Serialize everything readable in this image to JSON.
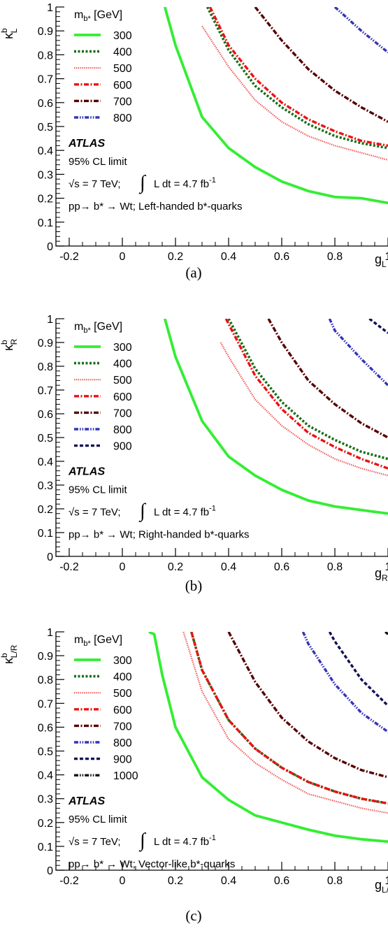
{
  "chart_data": [
    {
      "type": "line",
      "panel_label": "(a)",
      "xlabel": "g",
      "xlabel_sub": "L",
      "ylabel": "κ",
      "ylabel_sup": "b",
      "ylabel_sub": "L",
      "xlim": [
        -0.25,
        1.0
      ],
      "ylim": [
        0,
        1
      ],
      "x_ticks": [
        "-0.2",
        "0",
        "0.2",
        "0.4",
        "0.6",
        "0.8",
        "1"
      ],
      "y_ticks": [
        "0",
        "0.1",
        "0.2",
        "0.3",
        "0.4",
        "0.5",
        "0.6",
        "0.7",
        "0.8",
        "0.9",
        "1"
      ],
      "legend_title_main": "m",
      "legend_title_sub": "b*",
      "legend_title_rest": " [GeV]",
      "atlas_label": "ATLAS",
      "cl_label": "95% CL limit",
      "energy_label": "√s = 7 TeV;",
      "lumi_label": "L dt = 4.7 fb",
      "lumi_sup": "-1",
      "process_label": "pp→ b* → Wt; Left-handed b*-quarks",
      "series": [
        {
          "name": "300",
          "color": "#33ee33",
          "dash": "solid",
          "x": [
            0.16,
            0.2,
            0.3,
            0.4,
            0.5,
            0.6,
            0.7,
            0.8,
            0.9,
            1.0
          ],
          "y": [
            1.0,
            0.84,
            0.54,
            0.41,
            0.33,
            0.27,
            0.23,
            0.205,
            0.2,
            0.18
          ]
        },
        {
          "name": "400",
          "color": "#1a6e1a",
          "dash": "dotted",
          "x": [
            0.32,
            0.4,
            0.5,
            0.6,
            0.7,
            0.8,
            0.9,
            1.0
          ],
          "y": [
            1.0,
            0.82,
            0.67,
            0.58,
            0.51,
            0.46,
            0.43,
            0.41
          ]
        },
        {
          "name": "500",
          "color": "#ee5555",
          "dash": "fine",
          "x": [
            0.3,
            0.4,
            0.5,
            0.6,
            0.7,
            0.8,
            0.9,
            1.0
          ],
          "y": [
            0.92,
            0.75,
            0.61,
            0.52,
            0.46,
            0.42,
            0.39,
            0.36
          ]
        },
        {
          "name": "600",
          "color": "#ee1111",
          "dash": "dashdot",
          "x": [
            0.33,
            0.4,
            0.5,
            0.6,
            0.7,
            0.8,
            0.9,
            1.0
          ],
          "y": [
            1.0,
            0.84,
            0.7,
            0.6,
            0.53,
            0.48,
            0.44,
            0.42
          ]
        },
        {
          "name": "700",
          "color": "#550000",
          "dash": "dashdot",
          "x": [
            0.5,
            0.6,
            0.7,
            0.8,
            0.9,
            1.0
          ],
          "y": [
            1.0,
            0.86,
            0.74,
            0.65,
            0.58,
            0.52
          ]
        },
        {
          "name": "800",
          "color": "#3333bb",
          "dash": "dashdotdot",
          "x": [
            0.8,
            0.9,
            1.0
          ],
          "y": [
            1.0,
            0.9,
            0.81
          ]
        }
      ]
    },
    {
      "type": "line",
      "panel_label": "(b)",
      "xlabel": "g",
      "xlabel_sub": "R",
      "ylabel": "κ",
      "ylabel_sup": "b",
      "ylabel_sub": "R",
      "xlim": [
        -0.25,
        1.0
      ],
      "ylim": [
        0,
        1
      ],
      "x_ticks": [
        "-0.2",
        "0",
        "0.2",
        "0.4",
        "0.6",
        "0.8",
        "1"
      ],
      "y_ticks": [
        "0",
        "0.1",
        "0.2",
        "0.3",
        "0.4",
        "0.5",
        "0.6",
        "0.7",
        "0.8",
        "0.9",
        "1"
      ],
      "legend_title_main": "m",
      "legend_title_sub": "b*",
      "legend_title_rest": " [GeV]",
      "atlas_label": "ATLAS",
      "cl_label": "95% CL limit",
      "energy_label": "√s = 7 TeV;",
      "lumi_label": "L dt = 4.7 fb",
      "lumi_sup": "-1",
      "process_label": "pp→ b* → Wt; Right-handed b*-quarks",
      "series": [
        {
          "name": "300",
          "color": "#33ee33",
          "dash": "solid",
          "x": [
            0.16,
            0.2,
            0.3,
            0.4,
            0.5,
            0.6,
            0.7,
            0.8,
            0.9,
            1.0
          ],
          "y": [
            1.0,
            0.84,
            0.57,
            0.42,
            0.34,
            0.28,
            0.235,
            0.21,
            0.195,
            0.18
          ]
        },
        {
          "name": "400",
          "color": "#1a6e1a",
          "dash": "dotted",
          "x": [
            0.4,
            0.5,
            0.6,
            0.7,
            0.8,
            0.9,
            1.0
          ],
          "y": [
            1.0,
            0.79,
            0.65,
            0.55,
            0.49,
            0.44,
            0.41
          ]
        },
        {
          "name": "500",
          "color": "#ee5555",
          "dash": "fine",
          "x": [
            0.37,
            0.4,
            0.5,
            0.6,
            0.7,
            0.8,
            0.9,
            1.0
          ],
          "y": [
            0.9,
            0.84,
            0.66,
            0.55,
            0.47,
            0.41,
            0.37,
            0.34
          ]
        },
        {
          "name": "600",
          "color": "#ee1111",
          "dash": "dashdot",
          "x": [
            0.39,
            0.5,
            0.6,
            0.7,
            0.8,
            0.9,
            1.0
          ],
          "y": [
            1.0,
            0.76,
            0.62,
            0.52,
            0.46,
            0.41,
            0.37
          ]
        },
        {
          "name": "700",
          "color": "#550000",
          "dash": "dashdot",
          "x": [
            0.55,
            0.6,
            0.7,
            0.8,
            0.9,
            1.0
          ],
          "y": [
            1.0,
            0.9,
            0.74,
            0.64,
            0.56,
            0.5
          ]
        },
        {
          "name": "800",
          "color": "#3333bb",
          "dash": "dashdotdot",
          "x": [
            0.78,
            0.8,
            0.9,
            1.0
          ],
          "y": [
            1.0,
            0.95,
            0.83,
            0.72
          ]
        },
        {
          "name": "900",
          "color": "#111155",
          "dash": "dashed",
          "x": [
            0.93,
            1.0
          ],
          "y": [
            1.0,
            0.94
          ]
        }
      ]
    },
    {
      "type": "line",
      "panel_label": "(c)",
      "xlabel": "g",
      "xlabel_sub": "L/R",
      "ylabel": "κ",
      "ylabel_sup": "b",
      "ylabel_sub": "L/R",
      "xlim": [
        -0.25,
        1.0
      ],
      "ylim": [
        0,
        1
      ],
      "x_ticks": [
        "-0.2",
        "0",
        "0.2",
        "0.4",
        "0.6",
        "0.8",
        "1"
      ],
      "y_ticks": [
        "0",
        "0.1",
        "0.2",
        "0.3",
        "0.4",
        "0.5",
        "0.6",
        "0.7",
        "0.8",
        "0.9",
        "1"
      ],
      "legend_title_main": "m",
      "legend_title_sub": "b*",
      "legend_title_rest": " [GeV]",
      "atlas_label": "ATLAS",
      "cl_label": "95% CL limit",
      "energy_label": "√s = 7 TeV;",
      "lumi_label": "L dt = 4.7 fb",
      "lumi_sup": "-1",
      "process_label": "pp→ b* → Wt; Vector-like b*-quarks",
      "series": [
        {
          "name": "300",
          "color": "#33ee33",
          "dash": "solid",
          "x": [
            0.1,
            0.12,
            0.15,
            0.2,
            0.3,
            0.4,
            0.5,
            0.6,
            0.7,
            0.8,
            0.9,
            1.0
          ],
          "y": [
            1.0,
            0.99,
            0.82,
            0.6,
            0.39,
            0.295,
            0.23,
            0.2,
            0.17,
            0.145,
            0.13,
            0.12
          ]
        },
        {
          "name": "400",
          "color": "#1a6e1a",
          "dash": "dotted",
          "x": [
            0.26,
            0.3,
            0.4,
            0.5,
            0.6,
            0.7,
            0.8,
            0.9,
            1.0
          ],
          "y": [
            1.0,
            0.84,
            0.63,
            0.51,
            0.43,
            0.37,
            0.33,
            0.3,
            0.28
          ]
        },
        {
          "name": "500",
          "color": "#ee5555",
          "dash": "fine",
          "x": [
            0.23,
            0.3,
            0.4,
            0.5,
            0.6,
            0.7,
            0.8,
            0.9,
            1.0
          ],
          "y": [
            1.0,
            0.75,
            0.55,
            0.45,
            0.38,
            0.32,
            0.29,
            0.26,
            0.24
          ]
        },
        {
          "name": "600",
          "color": "#ee1111",
          "dash": "dashdot",
          "x": [
            0.26,
            0.3,
            0.4,
            0.5,
            0.6,
            0.7,
            0.8,
            0.9,
            1.0
          ],
          "y": [
            1.0,
            0.84,
            0.63,
            0.51,
            0.43,
            0.37,
            0.33,
            0.3,
            0.28
          ]
        },
        {
          "name": "700",
          "color": "#550000",
          "dash": "dashdot",
          "x": [
            0.4,
            0.5,
            0.6,
            0.7,
            0.8,
            0.9,
            1.0
          ],
          "y": [
            1.0,
            0.79,
            0.64,
            0.54,
            0.47,
            0.42,
            0.39
          ]
        },
        {
          "name": "800",
          "color": "#3333bb",
          "dash": "dashdotdot",
          "x": [
            0.68,
            0.7,
            0.8,
            0.9,
            1.0
          ],
          "y": [
            1.0,
            0.95,
            0.78,
            0.66,
            0.58
          ]
        },
        {
          "name": "900",
          "color": "#111155",
          "dash": "dashed",
          "x": [
            0.78,
            0.8,
            0.9,
            1.0
          ],
          "y": [
            1.0,
            0.96,
            0.8,
            0.69
          ]
        },
        {
          "name": "1000",
          "color": "#111111",
          "dash": "dashdotdot",
          "x": [
            0.99,
            1.0
          ],
          "y": [
            1.0,
            0.99
          ]
        }
      ]
    }
  ]
}
